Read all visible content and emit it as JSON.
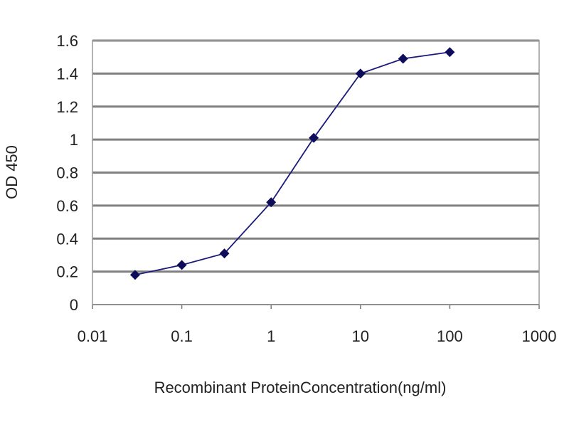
{
  "chart_data": {
    "type": "line",
    "title": "",
    "xlabel": "Recombinant ProteinConcentration(ng/ml)",
    "ylabel": "OD 450",
    "x_scale": "log",
    "xlim": [
      0.01,
      1000
    ],
    "ylim": [
      0,
      1.6
    ],
    "x_ticks": [
      "0.01",
      "0.1",
      "1",
      "10",
      "100",
      "1000"
    ],
    "x_tick_values": [
      0.01,
      0.1,
      1,
      10,
      100,
      1000
    ],
    "y_ticks": [
      "0",
      "0.2",
      "0.4",
      "0.6",
      "0.8",
      "1",
      "1.2",
      "1.4",
      "1.6"
    ],
    "y_tick_values": [
      0,
      0.2,
      0.4,
      0.6,
      0.8,
      1,
      1.2,
      1.4,
      1.6
    ],
    "grid": "horizontal",
    "legend": "none",
    "series": [
      {
        "x": [
          0.03,
          0.1,
          0.3,
          1,
          3,
          10,
          30,
          100
        ],
        "y": [
          0.18,
          0.24,
          0.31,
          0.62,
          1.01,
          1.4,
          1.49,
          1.53
        ],
        "color": "#1a1a7a",
        "marker": "diamond"
      }
    ],
    "colors": {
      "grid": "#808080",
      "line": "#1a1a7a",
      "marker": "#0d0d5c"
    }
  }
}
